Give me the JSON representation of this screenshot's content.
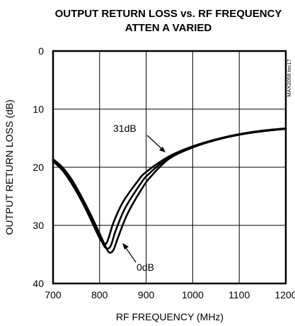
{
  "chart_data": {
    "type": "line",
    "title": "OUTPUT RETURN LOSS vs. RF FREQUENCY",
    "subtitle": "ATTEN A VARIED",
    "xlabel": "RF FREQUENCY (MHz)",
    "ylabel": "OUTPUT RETURN LOSS (dB)",
    "xlim": [
      700,
      1200
    ],
    "ylim": [
      0,
      40
    ],
    "y_inverted": true,
    "grid": true,
    "x_ticks": [
      "700",
      "800",
      "900",
      "1000",
      "1100",
      "1200"
    ],
    "y_ticks": [
      "0",
      "10",
      "20",
      "30",
      "40"
    ],
    "annotations": [
      "31dB",
      "0dB"
    ],
    "side_label": "MAX2058 toc17",
    "series": [
      {
        "name": "31dB",
        "x": [
          700,
          720,
          740,
          760,
          780,
          800,
          810,
          815,
          820,
          830,
          850,
          880,
          900,
          950,
          1000,
          1050,
          1100,
          1150,
          1200
        ],
        "y": [
          19,
          20.5,
          22.8,
          25.6,
          28.8,
          32.2,
          33.2,
          33.0,
          32.0,
          29.5,
          26.0,
          22.6,
          20.8,
          18.1,
          16.4,
          15.2,
          14.3,
          13.7,
          13.3
        ]
      },
      {
        "x": [
          700,
          720,
          740,
          760,
          780,
          800,
          810,
          818,
          825,
          835,
          855,
          885,
          905,
          950,
          1000,
          1050,
          1100,
          1150,
          1200
        ],
        "y": [
          18.8,
          20.2,
          22.4,
          25.2,
          28.4,
          31.8,
          33.6,
          34.0,
          33.3,
          30.8,
          27.0,
          23.2,
          21.2,
          18.3,
          16.5,
          15.3,
          14.4,
          13.8,
          13.4
        ]
      },
      {
        "name": "0dB",
        "x": [
          700,
          720,
          740,
          760,
          780,
          800,
          815,
          822,
          830,
          840,
          860,
          890,
          910,
          950,
          1000,
          1050,
          1100,
          1150,
          1200
        ],
        "y": [
          18.6,
          20.0,
          22.1,
          24.9,
          28.0,
          31.4,
          34.0,
          34.7,
          34.2,
          32.0,
          28.0,
          23.8,
          21.6,
          18.5,
          16.6,
          15.3,
          14.4,
          13.8,
          13.4
        ]
      }
    ]
  }
}
